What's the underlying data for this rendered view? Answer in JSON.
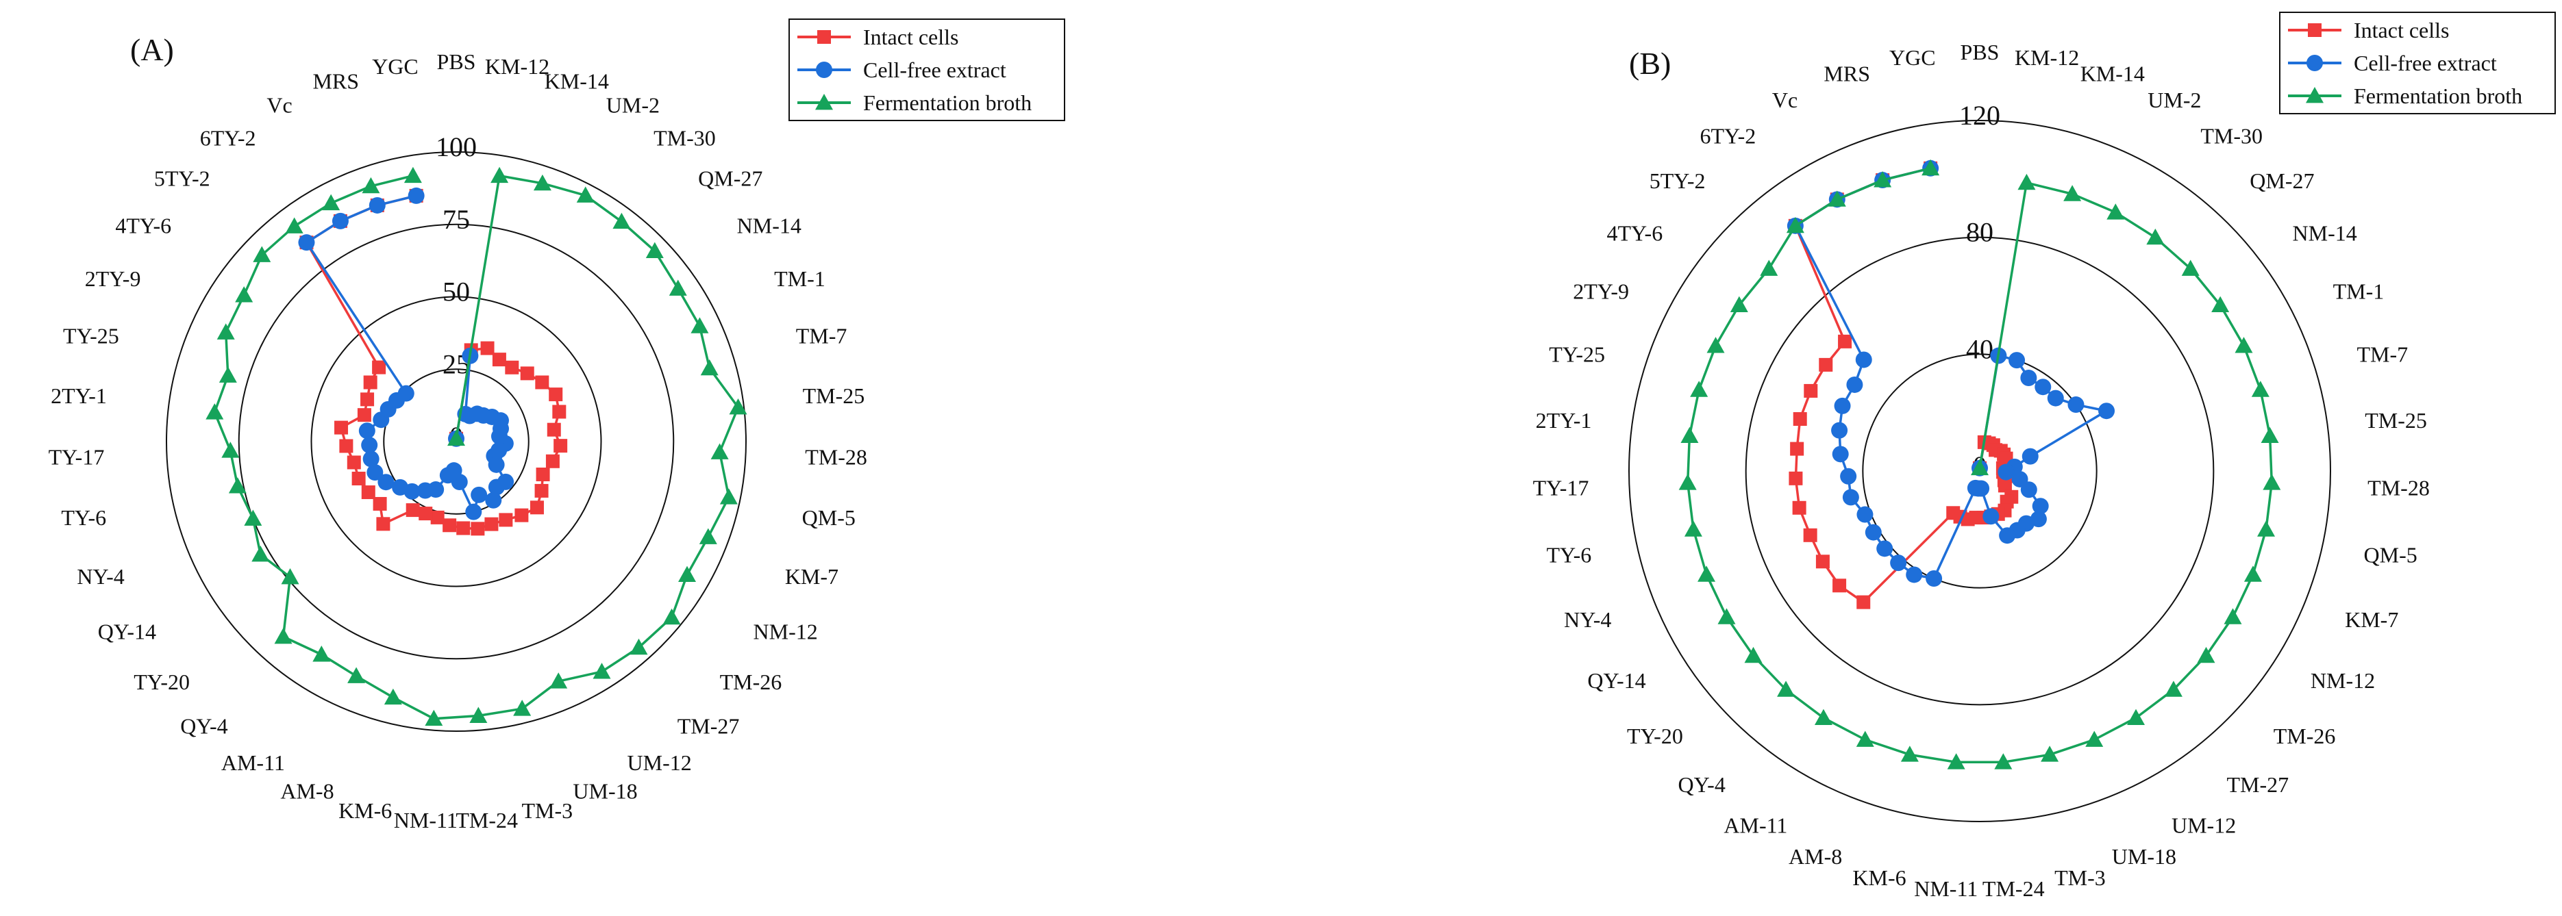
{
  "chart_data": [
    {
      "panel_label": "(A)",
      "type": "radar",
      "categories": [
        "PBS",
        "KM-12",
        "KM-14",
        "UM-2",
        "TM-30",
        "QM-27",
        "NM-14",
        "TM-1",
        "TM-7",
        "TM-25",
        "TM-28",
        "QM-5",
        "KM-7",
        "NM-12",
        "TM-26",
        "TM-27",
        "UM-12",
        "UM-18",
        "TM-3",
        "TM-24",
        "NM-11",
        "KM-6",
        "AM-8",
        "AM-11",
        "QY-4",
        "TY-20",
        "QY-14",
        "NY-4",
        "TY-6",
        "TY-17",
        "2TY-1",
        "TY-25",
        "2TY-9",
        "4TY-6",
        "5TY-2",
        "6TY-2",
        "Vc",
        "MRS",
        "YGC"
      ],
      "rlim": [
        0,
        100
      ],
      "ticks": [
        0,
        25,
        50,
        75,
        100
      ],
      "legend": [
        "Intact cells",
        "Cell-free extract",
        "Fermentation broth"
      ],
      "series": [
        {
          "name": "Intact cells",
          "color": "#ef3b3b",
          "marker": "square",
          "values": [
            1,
            32,
            34,
            32,
            32,
            34,
            36,
            38,
            37,
            34,
            36,
            34,
            32,
            34,
            36,
            34,
            32,
            31,
            31,
            30,
            29,
            27,
            27,
            28,
            38,
            34,
            35,
            36,
            36,
            38,
            40,
            33,
            34,
            36,
            37,
            86,
            86,
            86,
            86
          ]
        },
        {
          "name": "Cell-free extract",
          "color": "#1e6fd9",
          "marker": "circle",
          "values": [
            1,
            30,
            10,
            10,
            12,
            13,
            15,
            17,
            16,
            15,
            17,
            15,
            14,
            16,
            22,
            21,
            24,
            20,
            25,
            14,
            10,
            12,
            18,
            20,
            23,
            25,
            28,
            30,
            30,
            30,
            31,
            27,
            26,
            25,
            24,
            86,
            86,
            86,
            86
          ]
        },
        {
          "name": "Fermentation broth",
          "color": "#16a35a",
          "marker": "triangle",
          "values": [
            1,
            93,
            94,
            96,
            95,
            95,
            93,
            93,
            91,
            98,
            91,
            96,
            93,
            92,
            96,
            95,
            94,
            90,
            95,
            95,
            96,
            91,
            88,
            87,
            90,
            74,
            78,
            75,
            77,
            78,
            84,
            82,
            88,
            89,
            93,
            93,
            93,
            93,
            93
          ]
        }
      ]
    },
    {
      "panel_label": "(B)",
      "type": "radar",
      "categories": [
        "PBS",
        "KM-12",
        "KM-14",
        "UM-2",
        "TM-30",
        "QM-27",
        "NM-14",
        "TM-1",
        "TM-7",
        "TM-25",
        "TM-28",
        "QM-5",
        "KM-7",
        "NM-12",
        "TM-26",
        "TM-27",
        "UM-12",
        "UM-18",
        "TM-3",
        "TM-24",
        "NM-11",
        "KM-6",
        "AM-8",
        "AM-11",
        "QY-4",
        "TY-20",
        "QY-14",
        "NY-4",
        "TY-6",
        "TY-17",
        "2TY-1",
        "TY-25",
        "2TY-9",
        "4TY-6",
        "5TY-2",
        "6TY-2",
        "Vc",
        "MRS",
        "YGC"
      ],
      "rlim": [
        0,
        120
      ],
      "ticks": [
        0,
        40,
        80,
        120
      ],
      "legend": [
        "Intact cells",
        "Cell-free extract",
        "Fermentation broth"
      ],
      "series": [
        {
          "name": "Intact cells",
          "color": "#ef3b3b",
          "marker": "square",
          "values": [
            1,
            10,
            10,
            10,
            9,
            10,
            10,
            10,
            9,
            8,
            8,
            9,
            9,
            10,
            14,
            14,
            16,
            16,
            16,
            16,
            16,
            17,
            17,
            17,
            60,
            62,
            62,
            62,
            63,
            63,
            63,
            64,
            64,
            64,
            64,
            105,
            105,
            105,
            105
          ]
        },
        {
          "name": "Cell-free extract",
          "color": "#1e6fd9",
          "marker": "circle",
          "values": [
            1,
            40,
            40,
            36,
            36,
            36,
            40,
            48,
            18,
            12,
            9,
            14,
            18,
            24,
            26,
            24,
            24,
            24,
            16,
            6,
            6,
            6,
            40,
            42,
            42,
            42,
            42,
            42,
            45,
            45,
            48,
            50,
            52,
            52,
            55,
            105,
            105,
            105,
            105
          ]
        },
        {
          "name": "Fermentation broth",
          "color": "#16a35a",
          "marker": "triangle",
          "values": [
            1,
            100,
            100,
            100,
            100,
            100,
            100,
            100,
            100,
            100,
            100,
            100,
            100,
            100,
            100,
            100,
            100,
            100,
            100,
            100,
            100,
            100,
            100,
            100,
            100,
            100,
            100,
            100,
            100,
            100,
            100,
            100,
            100,
            100,
            100,
            105,
            105,
            105,
            105
          ]
        }
      ]
    }
  ]
}
